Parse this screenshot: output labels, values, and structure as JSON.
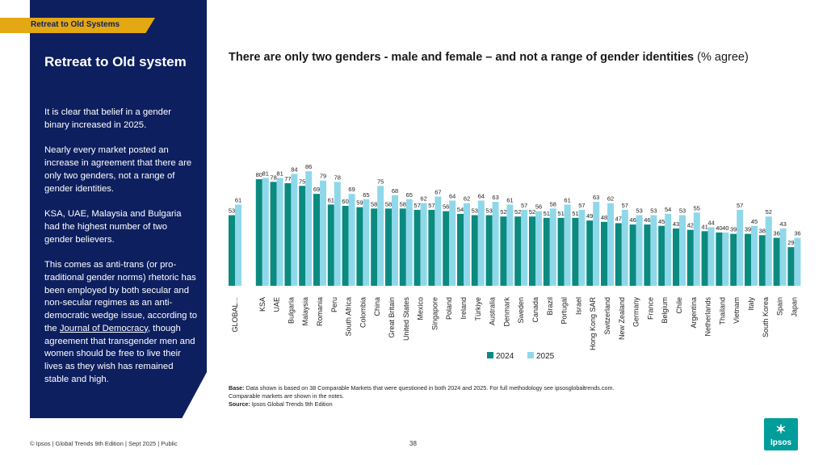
{
  "section_tag": "Retreat to Old Systems",
  "panel": {
    "title": "Retreat to Old system",
    "p1": "It is clear that belief in a gender binary increased in 2025.",
    "p2": "Nearly every market posted an increase in agreement that there are only two genders, not a range of gender identities.",
    "p3": "KSA, UAE, Malaysia and Bulgaria had the highest number of two gender believers.",
    "p4a": "This comes as anti-trans (or pro-traditional gender norms) rhetoric has been employed by both secular and non-secular regimes as an anti-democratic wedge issue, according to the",
    "p4link": "Journal of Democracy",
    "p4b": ", though agreement that transgender men and women should be free to live their lives as they wish has remained stable and high."
  },
  "chart_title": "There are only two genders - male and female – and not a range of gender identities",
  "chart_subtitle": "(% agree)",
  "notes": {
    "base_label": "Base:",
    "base_text": "Data shown is based on 38 Comparable Markets that were questioned in both 2024 and 2025. For full methodology see ipsosglobaltrends.com.",
    "base_text2": "Comparable markets are shown in the notes.",
    "source_label": "Source:",
    "source_text": "Ipsos Global Trends 9th Edition"
  },
  "footer": "© Ipsos | Global Trends 9th Edition | Sept 2025 | Public",
  "page_number": "38",
  "logo": "Ipsos",
  "colors": {
    "navy": "#0d1f5f",
    "gold": "#e3a812",
    "s2024": "#0b8a80",
    "s2025": "#8fd8ea",
    "logo": "#009d9a"
  },
  "chart_data": {
    "type": "bar",
    "ylim": [
      0,
      100
    ],
    "categories": [
      "GLOBAL...",
      "KSA",
      "UAE",
      "Bulgaria",
      "Malaysia",
      "Romania",
      "Peru",
      "South Africa",
      "Colombia",
      "China",
      "Great Britain",
      "United States",
      "Mexico",
      "Singapore",
      "Poland",
      "Ireland",
      "Türkiye",
      "Australia",
      "Denmark",
      "Sweden",
      "Canada",
      "Brazil",
      "Portugal",
      "Israel",
      "Hong Kong SAR",
      "Switzerland",
      "New Zealand",
      "Germany",
      "France",
      "Belgium",
      "Chile",
      "Argentina",
      "Netherlands",
      "Thailand",
      "Vietnam",
      "Italy",
      "South Korea",
      "Spain",
      "Japan"
    ],
    "series": [
      {
        "name": "2024",
        "values": [
          53,
          80,
          78,
          77,
          75,
          69,
          61,
          60,
          59,
          58,
          58,
          58,
          57,
          57,
          56,
          54,
          53,
          53,
          52,
          52,
          52,
          51,
          51,
          51,
          49,
          48,
          47,
          46,
          46,
          45,
          43,
          42,
          41,
          40,
          39,
          39,
          38,
          36,
          29
        ]
      },
      {
        "name": "2025",
        "values": [
          61,
          81,
          81,
          84,
          86,
          79,
          78,
          69,
          65,
          75,
          68,
          65,
          62,
          67,
          64,
          62,
          64,
          63,
          61,
          57,
          56,
          58,
          61,
          57,
          63,
          62,
          57,
          53,
          53,
          54,
          53,
          55,
          44,
          40,
          57,
          45,
          52,
          43,
          36
        ]
      }
    ]
  }
}
